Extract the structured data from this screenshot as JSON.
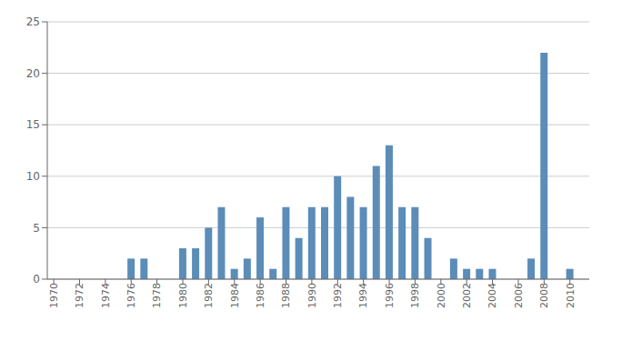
{
  "chart_data": {
    "type": "bar",
    "x": [
      1970,
      1971,
      1972,
      1973,
      1974,
      1975,
      1976,
      1977,
      1978,
      1979,
      1980,
      1981,
      1982,
      1983,
      1984,
      1985,
      1986,
      1987,
      1988,
      1989,
      1990,
      1991,
      1992,
      1993,
      1994,
      1995,
      1996,
      1997,
      1998,
      1999,
      2000,
      2001,
      2002,
      2003,
      2004,
      2005,
      2006,
      2007,
      2008,
      2009,
      2010
    ],
    "values": [
      0,
      0,
      0,
      0,
      0,
      0,
      2,
      2,
      0,
      0,
      3,
      3,
      5,
      7,
      1,
      2,
      6,
      1,
      7,
      4,
      7,
      7,
      10,
      8,
      7,
      11,
      13,
      7,
      7,
      4,
      0,
      2,
      1,
      1,
      1,
      0,
      0,
      2,
      22,
      0,
      1
    ],
    "color": "#5b8db8",
    "xlim": [
      1969.5,
      2011.5
    ],
    "xticks": [
      1970,
      1972,
      1974,
      1976,
      1978,
      1980,
      1982,
      1984,
      1986,
      1988,
      1990,
      1992,
      1994,
      1996,
      1998,
      2000,
      2002,
      2004,
      2006,
      2008,
      2010
    ],
    "ylim": [
      0,
      25
    ],
    "yticks": [
      0,
      5,
      10,
      15,
      20,
      25
    ],
    "grid": true
  }
}
